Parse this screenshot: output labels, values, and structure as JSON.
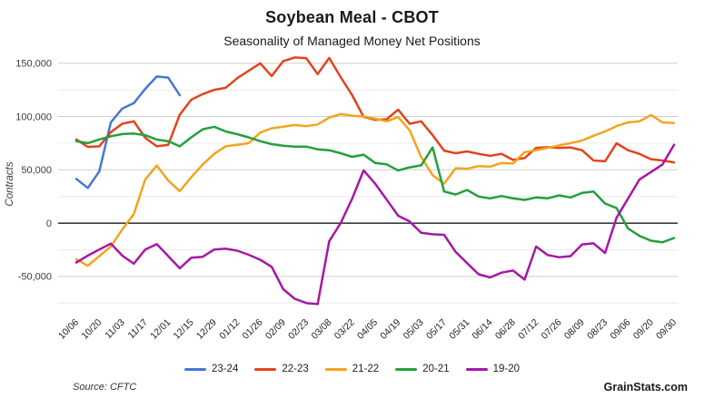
{
  "chart_data": {
    "type": "line",
    "title": "Soybean Meal - CBOT",
    "subtitle": "Seasonality of Managed Money Net Positions",
    "ylabel": "Contracts",
    "footer": {
      "source": "Source: CFTC",
      "brand": "GrainStats.com"
    },
    "grid": "horizontal gridlines only, black zero line",
    "legend_position": "bottom-center",
    "ylim": [
      -85000,
      160000
    ],
    "n_points": 53,
    "x_label_every": 2,
    "x_tick_labels": [
      "10/06",
      "10/20",
      "11/03",
      "11/17",
      "12/01",
      "12/15",
      "12/29",
      "01/12",
      "01/26",
      "02/09",
      "02/23",
      "03/08",
      "03/22",
      "04/05",
      "04/19",
      "05/03",
      "05/17",
      "05/31",
      "06/14",
      "06/28",
      "07/12",
      "07/26",
      "08/09",
      "08/23",
      "09/06",
      "09/20",
      "09/30"
    ],
    "y_ticks": [
      {
        "v": 150000,
        "label": "150,000"
      },
      {
        "v": 100000,
        "label": "100,000"
      },
      {
        "v": 50000,
        "label": "50,000"
      },
      {
        "v": 0,
        "label": "0"
      },
      {
        "v": -50000,
        "label": "-50,000"
      }
    ],
    "y_minor": [
      125000,
      75000,
      25000,
      -25000,
      -75000
    ],
    "series": [
      {
        "name": "23-24",
        "color": "#4377D5",
        "values": [
          41500,
          33000,
          48500,
          94500,
          107500,
          112500,
          126000,
          137500,
          136500,
          120000
        ]
      },
      {
        "name": "22-23",
        "color": "#E2431E",
        "values": [
          78500,
          71500,
          72000,
          85300,
          93200,
          95500,
          80000,
          72000,
          73500,
          101700,
          115800,
          121000,
          125000,
          127000,
          136000,
          143000,
          150000,
          138000,
          152000,
          155400,
          154800,
          139800,
          155000,
          137000,
          120000,
          99700,
          96900,
          97500,
          106500,
          93200,
          95500,
          82500,
          68000,
          65600,
          67300,
          65000,
          63100,
          65000,
          59300,
          61000,
          70600,
          71200,
          70600,
          71000,
          68400,
          58800,
          58000,
          74900,
          68400,
          65000,
          60000,
          58800,
          57000
        ]
      },
      {
        "name": "21-22",
        "color": "#F2A41D",
        "values": [
          -34000,
          -40000,
          -31000,
          -22000,
          -6000,
          8500,
          41000,
          54000,
          40000,
          30000,
          43000,
          55000,
          65000,
          72000,
          73500,
          75000,
          85000,
          89000,
          90500,
          92000,
          91000,
          92500,
          99000,
          102300,
          100800,
          100000,
          98000,
          95500,
          99500,
          87000,
          62000,
          45000,
          37000,
          51500,
          51000,
          53500,
          53000,
          56500,
          56000,
          66500,
          68500,
          70500,
          73000,
          75000,
          77500,
          82000,
          86000,
          91000,
          94500,
          95500,
          101500,
          94500,
          94000
        ]
      },
      {
        "name": "20-21",
        "color": "#22A03C",
        "values": [
          77000,
          75000,
          78500,
          81500,
          83500,
          84000,
          82500,
          78300,
          76900,
          72000,
          80500,
          88000,
          90400,
          86000,
          83400,
          80500,
          76900,
          74100,
          72600,
          71800,
          71800,
          69200,
          68400,
          65600,
          62200,
          64200,
          56500,
          55100,
          49400,
          52300,
          54200,
          71000,
          29700,
          26900,
          31100,
          24900,
          23200,
          25400,
          23200,
          21800,
          24100,
          23200,
          26000,
          24100,
          28300,
          29700,
          18400,
          14200,
          -5000,
          -12000,
          -16500,
          -18000,
          -14000
        ]
      },
      {
        "name": "19-20",
        "color": "#A617A6",
        "values": [
          -37000,
          -30500,
          -24800,
          -19200,
          -30500,
          -38100,
          -24800,
          -19700,
          -31000,
          -42400,
          -32500,
          -31600,
          -24800,
          -24000,
          -25900,
          -29700,
          -34400,
          -41000,
          -62000,
          -71000,
          -75000,
          -76000,
          -17000,
          0,
          23000,
          49500,
          37000,
          22000,
          7000,
          1500,
          -9000,
          -10500,
          -11000,
          -27000,
          -37500,
          -48000,
          -51000,
          -46500,
          -44500,
          -53000,
          -22000,
          -30000,
          -32000,
          -31000,
          -20000,
          -19000,
          -28000,
          5000,
          23000,
          41000,
          48000,
          55000,
          73500
        ]
      }
    ]
  }
}
